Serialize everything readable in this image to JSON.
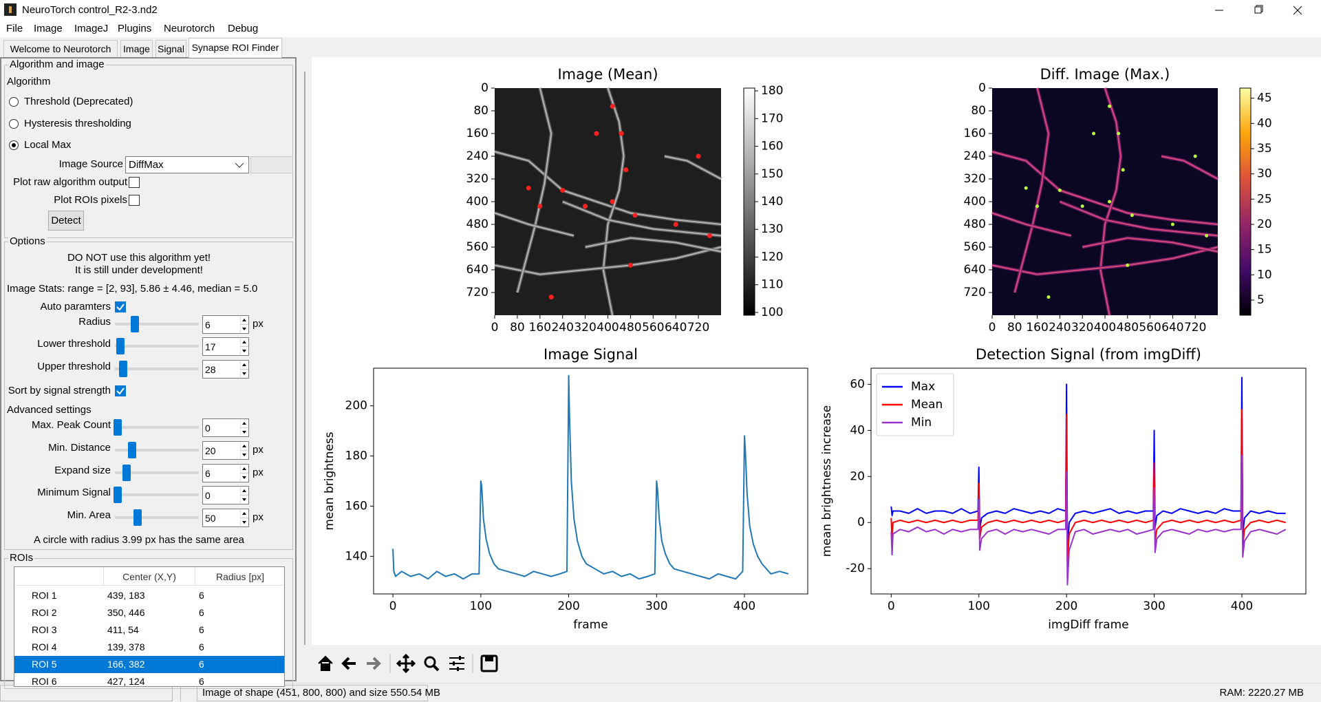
{
  "window_title": "NeuroTorch control_R2-3.nd2",
  "menu": [
    "File",
    "Image",
    "ImageJ",
    "Plugins",
    "Neurotorch",
    "Debug"
  ],
  "tabs": [
    "Welcome to Neurotorch",
    "Image",
    "Signal",
    "Synapse ROI Finder"
  ],
  "active_tab": 3,
  "algorithm_group": {
    "title": "Algorithm and image",
    "label": "Algorithm",
    "options": [
      "Threshold (Deprecated)",
      "Hysteresis thresholding",
      "Local Max"
    ],
    "selected": 2,
    "image_source_label": "Image Source",
    "image_source": "DiffMax",
    "plot_raw": {
      "label": "Plot raw algorithm output",
      "checked": false
    },
    "plot_rois": {
      "label": "Plot ROIs pixels",
      "checked": false
    },
    "detect": "Detect"
  },
  "options_group": {
    "title": "Options",
    "warning": [
      "DO NOT use this algorithm yet!",
      "It is still under development!"
    ],
    "stats": "Image Stats: range = [2, 93], 5.86 ± 4.46, median = 5.0",
    "auto_params": {
      "label": "Auto paramters",
      "checked": true
    },
    "sort": {
      "label": "Sort by signal strength",
      "checked": true
    },
    "advanced": "Advanced settings",
    "params": [
      {
        "label": "Radius",
        "value": 6,
        "unit": "px"
      },
      {
        "label": "Lower threshold",
        "value": 17
      },
      {
        "label": "Upper threshold",
        "value": 28
      },
      {
        "label": "Max. Peak Count",
        "value": 0
      },
      {
        "label": "Min. Distance",
        "value": 20,
        "unit": "px"
      },
      {
        "label": "Expand size",
        "value": 6,
        "unit": "px"
      },
      {
        "label": "Minimum Signal",
        "value": 0
      },
      {
        "label": "Min. Area",
        "value": 50,
        "unit": "px"
      }
    ],
    "area_note": "A circle with radius 3.99 px has the same area"
  },
  "rois_group": {
    "title": "ROIs",
    "headers": [
      "Center (X,Y)",
      "Radius [px]"
    ],
    "rows": [
      [
        "ROI 1",
        "439, 183",
        6
      ],
      [
        "ROI 2",
        "350, 446",
        6
      ],
      [
        "ROI 3",
        "411, 54",
        6
      ],
      [
        "ROI 4",
        "139, 378",
        6
      ],
      [
        "ROI 5",
        "166, 382",
        6
      ],
      [
        "ROI 6",
        "427, 124",
        6
      ]
    ],
    "selected": 4
  },
  "status": {
    "message": "Image of shape (451, 800, 800) and size 550.54 MB",
    "ram": "RAM: 2220.27 MB"
  },
  "chart_data": [
    {
      "type": "heatmap",
      "title": "Image (Mean)",
      "colormap": "gray",
      "xlim": [
        0,
        800
      ],
      "ylim": [
        800,
        0
      ],
      "xticks": [
        0,
        80,
        160,
        240,
        320,
        400,
        480,
        560,
        640,
        720
      ],
      "yticks": [
        0,
        80,
        160,
        240,
        320,
        400,
        480,
        560,
        640,
        720
      ],
      "clim": [
        99,
        181
      ],
      "cticks": [
        100,
        110,
        120,
        130,
        140,
        150,
        160,
        170,
        180
      ]
    },
    {
      "type": "heatmap",
      "title": "Diff. Image (Max.)",
      "colormap": "inferno",
      "xlim": [
        0,
        800
      ],
      "ylim": [
        800,
        0
      ],
      "xticks": [
        0,
        80,
        160,
        240,
        320,
        400,
        480,
        560,
        640,
        720
      ],
      "yticks": [
        0,
        80,
        160,
        240,
        320,
        400,
        480,
        560,
        640,
        720
      ],
      "clim": [
        2,
        47
      ],
      "cticks": [
        5,
        10,
        15,
        20,
        25,
        30,
        35,
        40,
        45
      ]
    },
    {
      "type": "line",
      "title": "Image Signal",
      "xlabel": "frame",
      "ylabel": "mean brightness",
      "x": [
        0,
        1,
        3,
        10,
        20,
        30,
        40,
        50,
        60,
        70,
        80,
        90,
        98,
        100,
        101,
        103,
        106,
        110,
        115,
        120,
        130,
        140,
        150,
        160,
        170,
        180,
        190,
        198,
        200,
        201,
        203,
        206,
        210,
        215,
        220,
        230,
        240,
        250,
        260,
        270,
        280,
        290,
        298,
        300,
        301,
        303,
        306,
        310,
        315,
        320,
        330,
        340,
        350,
        360,
        370,
        380,
        390,
        398,
        400,
        401,
        403,
        406,
        410,
        415,
        420,
        430,
        440,
        450
      ],
      "values": [
        143,
        134,
        132,
        134,
        132,
        133,
        131,
        134,
        132,
        133,
        131,
        133,
        133,
        170,
        168,
        155,
        147,
        141,
        137,
        135,
        134,
        133,
        132,
        134,
        133,
        132,
        133,
        134,
        212,
        195,
        170,
        155,
        146,
        140,
        137,
        135,
        133,
        134,
        132,
        133,
        131,
        132,
        133,
        170,
        167,
        155,
        146,
        141,
        137,
        135,
        134,
        133,
        132,
        131,
        133,
        132,
        131,
        134,
        188,
        182,
        165,
        152,
        145,
        140,
        137,
        133,
        134,
        133
      ],
      "color": "#1f77b4",
      "xlim": [
        -22,
        472
      ],
      "ylim": [
        125,
        215
      ],
      "xticks": [
        0,
        100,
        200,
        300,
        400
      ],
      "yticks": [
        140,
        160,
        180,
        200
      ]
    },
    {
      "type": "line",
      "title": "Detection Signal (from imgDiff)",
      "xlabel": "imgDiff frame",
      "ylabel": "mean brightness increase",
      "x": [
        0,
        1,
        2,
        10,
        20,
        30,
        40,
        50,
        60,
        70,
        80,
        90,
        99,
        100,
        101,
        103,
        110,
        120,
        130,
        140,
        150,
        160,
        170,
        180,
        190,
        199,
        200,
        201,
        203,
        210,
        220,
        230,
        240,
        250,
        260,
        270,
        280,
        290,
        299,
        300,
        301,
        303,
        310,
        320,
        330,
        340,
        350,
        360,
        370,
        380,
        390,
        399,
        400,
        401,
        403,
        410,
        420,
        430,
        440,
        450
      ],
      "series": [
        {
          "name": "Max",
          "color": "#0000ff",
          "values": [
            7,
            3,
            5,
            5,
            4,
            6,
            4,
            5,
            5,
            4,
            6,
            4,
            5,
            24,
            -3,
            2,
            4,
            5,
            4,
            6,
            5,
            4,
            5,
            4,
            6,
            5,
            60,
            -12,
            0,
            4,
            5,
            4,
            5,
            6,
            4,
            5,
            4,
            5,
            5,
            40,
            -2,
            3,
            5,
            4,
            6,
            5,
            4,
            5,
            4,
            6,
            5,
            5,
            63,
            -5,
            2,
            5,
            4,
            5,
            4,
            4
          ]
        },
        {
          "name": "Mean",
          "color": "#ff0000",
          "values": [
            2,
            -8,
            0,
            1,
            0,
            1,
            0,
            1,
            0,
            1,
            0,
            1,
            1,
            17,
            -7,
            -2,
            0,
            1,
            0,
            1,
            0,
            1,
            0,
            1,
            0,
            1,
            47,
            -18,
            -5,
            0,
            1,
            0,
            1,
            0,
            1,
            0,
            1,
            0,
            1,
            26,
            -8,
            -3,
            0,
            1,
            0,
            1,
            0,
            1,
            0,
            1,
            0,
            1,
            49,
            -10,
            -3,
            0,
            1,
            0,
            1,
            0
          ]
        },
        {
          "name": "Min",
          "color": "#9932cc",
          "values": [
            -4,
            -14,
            -5,
            -3,
            -4,
            -2,
            -4,
            -3,
            -5,
            -3,
            -4,
            -3,
            -3,
            10,
            -12,
            -7,
            -4,
            -3,
            -5,
            -3,
            -4,
            -3,
            -4,
            -5,
            -3,
            -3,
            22,
            -27,
            -12,
            -4,
            -3,
            -5,
            -4,
            -3,
            -4,
            -3,
            -5,
            -4,
            -3,
            15,
            -13,
            -7,
            -4,
            -3,
            -4,
            -5,
            -3,
            -4,
            -3,
            -4,
            -3,
            -3,
            29,
            -15,
            -8,
            -4,
            -3,
            -4,
            -5,
            -3
          ]
        }
      ],
      "xlim": [
        -23,
        473
      ],
      "ylim": [
        -31,
        67
      ],
      "xticks": [
        0,
        100,
        200,
        300,
        400
      ],
      "yticks": [
        -20,
        0,
        20,
        40,
        60
      ],
      "legend": "upper left"
    }
  ]
}
